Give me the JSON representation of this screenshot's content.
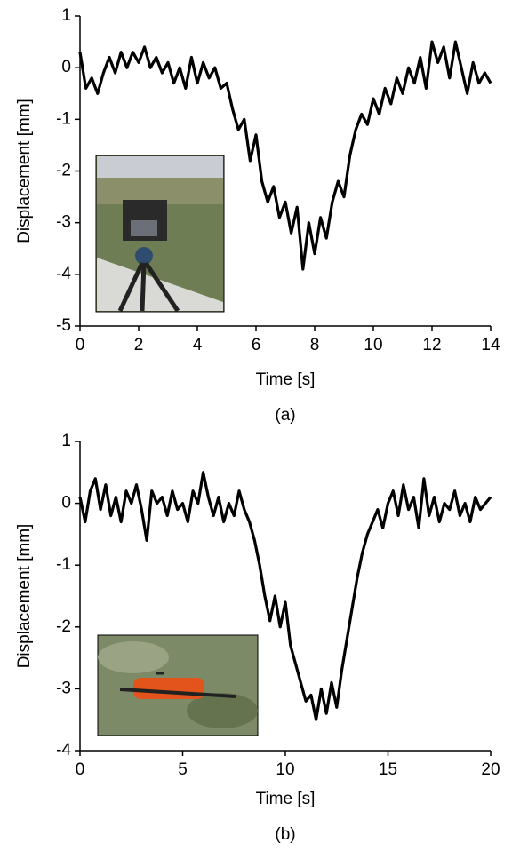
{
  "chart_data": [
    {
      "type": "line",
      "xlabel": "Time [s]",
      "ylabel": "Displacement [mm]",
      "caption": "(a)",
      "xlim": [
        0,
        14
      ],
      "ylim": [
        -5,
        1
      ],
      "xticks": [
        0,
        2,
        4,
        6,
        8,
        10,
        12,
        14
      ],
      "yticks": [
        -5,
        -4,
        -3,
        -2,
        -1,
        0,
        1
      ],
      "color": "#000000",
      "x": [
        0,
        0.2,
        0.4,
        0.6,
        0.8,
        1,
        1.2,
        1.4,
        1.6,
        1.8,
        2,
        2.2,
        2.4,
        2.6,
        2.8,
        3,
        3.2,
        3.4,
        3.6,
        3.8,
        4,
        4.2,
        4.4,
        4.6,
        4.8,
        5,
        5.2,
        5.4,
        5.6,
        5.8,
        6,
        6.2,
        6.4,
        6.6,
        6.8,
        7,
        7.2,
        7.4,
        7.6,
        7.8,
        8,
        8.2,
        8.4,
        8.6,
        8.8,
        9,
        9.2,
        9.4,
        9.6,
        9.8,
        10,
        10.2,
        10.4,
        10.6,
        10.8,
        11,
        11.2,
        11.4,
        11.6,
        11.8,
        12,
        12.2,
        12.4,
        12.6,
        12.8,
        13,
        13.2,
        13.4,
        13.6,
        13.8,
        14
      ],
      "values": [
        0.3,
        -0.4,
        -0.2,
        -0.5,
        -0.1,
        0.2,
        -0.1,
        0.3,
        0.0,
        0.3,
        0.1,
        0.4,
        0.0,
        0.2,
        -0.1,
        0.1,
        -0.3,
        0.0,
        -0.4,
        0.2,
        -0.3,
        0.1,
        -0.2,
        0.0,
        -0.4,
        -0.3,
        -0.8,
        -1.2,
        -1.0,
        -1.8,
        -1.3,
        -2.2,
        -2.6,
        -2.3,
        -2.9,
        -2.6,
        -3.2,
        -2.7,
        -3.9,
        -3.0,
        -3.6,
        -2.9,
        -3.3,
        -2.6,
        -2.2,
        -2.5,
        -1.7,
        -1.2,
        -0.9,
        -1.1,
        -0.6,
        -0.9,
        -0.4,
        -0.7,
        -0.2,
        -0.5,
        0.0,
        -0.3,
        0.2,
        -0.4,
        0.5,
        0.1,
        0.4,
        -0.2,
        0.5,
        0.0,
        -0.5,
        0.1,
        -0.3,
        -0.1,
        -0.3
      ]
    },
    {
      "type": "line",
      "xlabel": "Time [s]",
      "ylabel": "Displacement [mm]",
      "caption": "(b)",
      "xlim": [
        0,
        20
      ],
      "ylim": [
        -4,
        1
      ],
      "xticks": [
        0,
        5,
        10,
        15,
        20
      ],
      "yticks": [
        -4,
        -3,
        -2,
        -1,
        0,
        1
      ],
      "color": "#000000",
      "x": [
        0,
        0.25,
        0.5,
        0.75,
        1,
        1.25,
        1.5,
        1.75,
        2,
        2.25,
        2.5,
        2.75,
        3,
        3.25,
        3.5,
        3.75,
        4,
        4.25,
        4.5,
        4.75,
        5,
        5.25,
        5.5,
        5.75,
        6,
        6.25,
        6.5,
        6.75,
        7,
        7.25,
        7.5,
        7.75,
        8,
        8.25,
        8.5,
        8.75,
        9,
        9.25,
        9.5,
        9.75,
        10,
        10.25,
        10.5,
        10.75,
        11,
        11.25,
        11.5,
        11.75,
        12,
        12.25,
        12.5,
        12.75,
        13,
        13.25,
        13.5,
        13.75,
        14,
        14.25,
        14.5,
        14.75,
        15,
        15.25,
        15.5,
        15.75,
        16,
        16.25,
        16.5,
        16.75,
        17,
        17.25,
        17.5,
        17.75,
        18,
        18.25,
        18.5,
        18.75,
        19,
        19.25,
        19.5,
        19.75,
        20
      ],
      "values": [
        0.1,
        -0.3,
        0.2,
        0.4,
        -0.1,
        0.3,
        -0.2,
        0.1,
        -0.3,
        0.2,
        0.0,
        0.3,
        -0.1,
        -0.6,
        0.2,
        0.0,
        0.1,
        -0.2,
        0.2,
        -0.1,
        0.0,
        -0.3,
        0.2,
        0.0,
        0.5,
        0.1,
        -0.2,
        0.1,
        -0.3,
        0.0,
        -0.2,
        0.2,
        -0.1,
        -0.3,
        -0.6,
        -1.0,
        -1.5,
        -1.9,
        -1.5,
        -2.0,
        -1.6,
        -2.3,
        -2.6,
        -2.9,
        -3.2,
        -3.1,
        -3.5,
        -3.0,
        -3.4,
        -2.9,
        -3.3,
        -2.7,
        -2.2,
        -1.7,
        -1.2,
        -0.8,
        -0.5,
        -0.3,
        -0.1,
        -0.4,
        0.0,
        0.2,
        -0.2,
        0.3,
        -0.1,
        0.1,
        -0.4,
        0.4,
        -0.2,
        0.1,
        -0.3,
        0.0,
        -0.1,
        0.2,
        -0.2,
        0.0,
        -0.3,
        0.1,
        -0.1,
        0.0,
        0.1
      ]
    }
  ]
}
